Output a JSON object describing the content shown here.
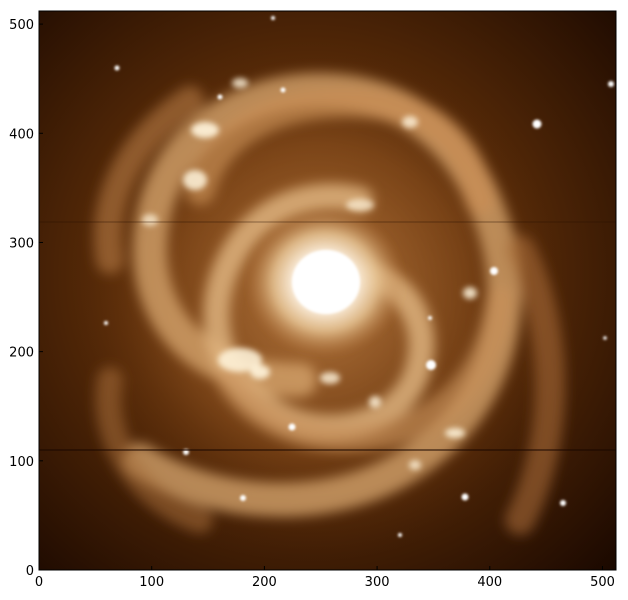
{
  "image": {
    "subject": "spiral-galaxy",
    "colormap": [
      "#000000",
      "#3a1a05",
      "#7a4418",
      "#b97d45",
      "#e8c89a",
      "#ffffff"
    ]
  },
  "axes": {
    "x_range": [
      0,
      512
    ],
    "y_range": [
      0,
      512
    ],
    "x_ticks": [
      0,
      100,
      200,
      300,
      400,
      500
    ],
    "y_ticks": [
      0,
      100,
      200,
      300,
      400,
      500
    ]
  },
  "labels": {
    "x": [
      "0",
      "100",
      "200",
      "300",
      "400",
      "500"
    ],
    "y": [
      "0",
      "100",
      "200",
      "300",
      "400",
      "500"
    ]
  }
}
